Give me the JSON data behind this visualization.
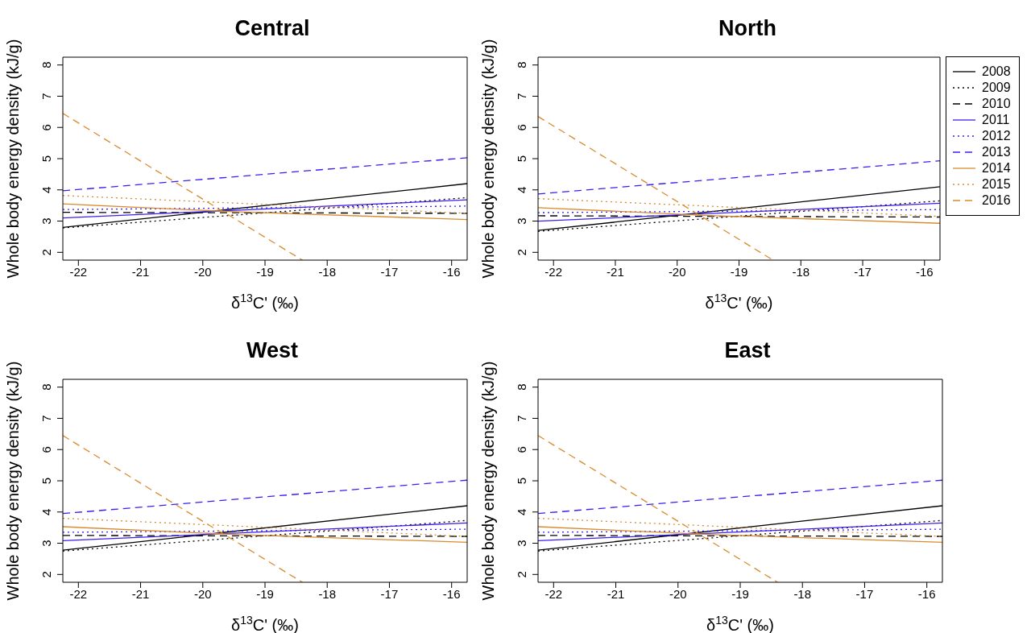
{
  "chart_data": [
    {
      "type": "line",
      "title": "Central",
      "xlabel": "δ$^{13}$C' (‰)",
      "ylabel": "Whole body energy density (kJ/g)",
      "xlim": [
        -22.25,
        -15.75
      ],
      "ylim": [
        1.75,
        8.25
      ],
      "xticks": [
        -22,
        -21,
        -20,
        -19,
        -18,
        -17,
        -16
      ],
      "yticks": [
        2,
        3,
        4,
        5,
        6,
        7,
        8
      ],
      "series": [
        {
          "color": "#000000",
          "line_style": "solid",
          "x": [
            -22.25,
            -15.75
          ],
          "values": [
            2.8,
            4.2
          ]
        },
        {
          "color": "#000000",
          "line_style": "dotted",
          "x": [
            -22.25,
            -15.75
          ],
          "values": [
            2.78,
            3.75
          ]
        },
        {
          "color": "#000000",
          "line_style": "dashed",
          "x": [
            -22.25,
            -15.75
          ],
          "values": [
            3.28,
            3.25
          ]
        },
        {
          "color": "#3b1ff0",
          "line_style": "solid",
          "x": [
            -22.25,
            -15.75
          ],
          "values": [
            3.1,
            3.68
          ]
        },
        {
          "color": "#3b1ff0",
          "line_style": "dotted",
          "x": [
            -22.25,
            -15.75
          ],
          "values": [
            3.37,
            3.48
          ]
        },
        {
          "color": "#3b1ff0",
          "line_style": "dashed",
          "x": [
            -22.25,
            -15.75
          ],
          "values": [
            3.97,
            5.03
          ]
        },
        {
          "color": "#d98b2f",
          "line_style": "solid",
          "x": [
            -22.25,
            -19.5,
            -15.75
          ],
          "values": [
            3.55,
            3.3,
            3.05
          ]
        },
        {
          "color": "#d98b2f",
          "line_style": "dotted",
          "x": [
            -22.25,
            -15.75
          ],
          "values": [
            3.82,
            3.25
          ]
        },
        {
          "color": "#d98b2f",
          "line_style": "dashed",
          "x": [
            -22.25,
            -18.4
          ],
          "values": [
            6.45,
            1.75
          ]
        }
      ]
    },
    {
      "type": "line",
      "title": "North",
      "xlabel": "δ$^{13}$C' (‰)",
      "ylabel": "Whole body energy density (kJ/g)",
      "xlim": [
        -22.25,
        -15.75
      ],
      "ylim": [
        1.75,
        8.25
      ],
      "xticks": [
        -22,
        -21,
        -20,
        -19,
        -18,
        -17,
        -16
      ],
      "yticks": [
        2,
        3,
        4,
        5,
        6,
        7,
        8
      ],
      "legend": "top right",
      "series": [
        {
          "name": "2008",
          "color": "#000000",
          "line_style": "solid",
          "x": [
            -22.25,
            -15.75
          ],
          "values": [
            2.7,
            4.1
          ]
        },
        {
          "name": "2009",
          "color": "#000000",
          "line_style": "dotted",
          "x": [
            -22.25,
            -15.75
          ],
          "values": [
            2.67,
            3.65
          ]
        },
        {
          "name": "2010",
          "color": "#000000",
          "line_style": "dashed",
          "x": [
            -22.25,
            -15.75
          ],
          "values": [
            3.17,
            3.13
          ]
        },
        {
          "name": "2011",
          "color": "#3b1ff0",
          "line_style": "solid",
          "x": [
            -22.25,
            -15.75
          ],
          "values": [
            3.0,
            3.57
          ]
        },
        {
          "name": "2012",
          "color": "#3b1ff0",
          "line_style": "dotted",
          "x": [
            -22.25,
            -15.75
          ],
          "values": [
            3.27,
            3.37
          ]
        },
        {
          "name": "2013",
          "color": "#3b1ff0",
          "line_style": "dashed",
          "x": [
            -22.25,
            -15.75
          ],
          "values": [
            3.87,
            4.93
          ]
        },
        {
          "name": "2014",
          "color": "#d98b2f",
          "line_style": "solid",
          "x": [
            -22.25,
            -19.5,
            -15.75
          ],
          "values": [
            3.43,
            3.18,
            2.93
          ]
        },
        {
          "name": "2015",
          "color": "#d98b2f",
          "line_style": "dotted",
          "x": [
            -22.25,
            -15.75
          ],
          "values": [
            3.72,
            3.15
          ]
        },
        {
          "name": "2016",
          "color": "#d98b2f",
          "line_style": "dashed",
          "x": [
            -22.25,
            -18.45
          ],
          "values": [
            6.35,
            1.75
          ]
        }
      ]
    },
    {
      "type": "line",
      "title": "West",
      "xlabel": "δ$^{13}$C' (‰)",
      "ylabel": "Whole body energy density (kJ/g)",
      "xlim": [
        -22.25,
        -15.75
      ],
      "ylim": [
        1.75,
        8.25
      ],
      "xticks": [
        -22,
        -21,
        -20,
        -19,
        -18,
        -17,
        -16
      ],
      "yticks": [
        2,
        3,
        4,
        5,
        6,
        7,
        8
      ],
      "series": [
        {
          "color": "#000000",
          "line_style": "solid",
          "x": [
            -22.25,
            -15.75
          ],
          "values": [
            2.78,
            4.2
          ]
        },
        {
          "color": "#000000",
          "line_style": "dotted",
          "x": [
            -22.25,
            -15.75
          ],
          "values": [
            2.75,
            3.73
          ]
        },
        {
          "color": "#000000",
          "line_style": "dashed",
          "x": [
            -22.25,
            -15.75
          ],
          "values": [
            3.25,
            3.22
          ]
        },
        {
          "color": "#3b1ff0",
          "line_style": "solid",
          "x": [
            -22.25,
            -15.75
          ],
          "values": [
            3.08,
            3.65
          ]
        },
        {
          "color": "#3b1ff0",
          "line_style": "dotted",
          "x": [
            -22.25,
            -15.75
          ],
          "values": [
            3.35,
            3.45
          ]
        },
        {
          "color": "#3b1ff0",
          "line_style": "dashed",
          "x": [
            -22.25,
            -15.75
          ],
          "values": [
            3.95,
            5.02
          ]
        },
        {
          "color": "#d98b2f",
          "line_style": "solid",
          "x": [
            -22.25,
            -19.5,
            -15.75
          ],
          "values": [
            3.53,
            3.28,
            3.03
          ]
        },
        {
          "color": "#d98b2f",
          "line_style": "dotted",
          "x": [
            -22.25,
            -15.75
          ],
          "values": [
            3.8,
            3.22
          ]
        },
        {
          "color": "#d98b2f",
          "line_style": "dashed",
          "x": [
            -22.25,
            -18.4
          ],
          "values": [
            6.45,
            1.75
          ]
        }
      ]
    },
    {
      "type": "line",
      "title": "East",
      "xlabel": "δ$^{13}$C' (‰)",
      "ylabel": "Whole body energy density (kJ/g)",
      "xlim": [
        -22.25,
        -15.75
      ],
      "ylim": [
        1.75,
        8.25
      ],
      "xticks": [
        -22,
        -21,
        -20,
        -19,
        -18,
        -17,
        -16
      ],
      "yticks": [
        2,
        3,
        4,
        5,
        6,
        7,
        8
      ],
      "series": [
        {
          "color": "#000000",
          "line_style": "solid",
          "x": [
            -22.25,
            -15.75
          ],
          "values": [
            2.78,
            4.2
          ]
        },
        {
          "color": "#000000",
          "line_style": "dotted",
          "x": [
            -22.25,
            -15.75
          ],
          "values": [
            2.75,
            3.73
          ]
        },
        {
          "color": "#000000",
          "line_style": "dashed",
          "x": [
            -22.25,
            -15.75
          ],
          "values": [
            3.25,
            3.22
          ]
        },
        {
          "color": "#3b1ff0",
          "line_style": "solid",
          "x": [
            -22.25,
            -15.75
          ],
          "values": [
            3.08,
            3.65
          ]
        },
        {
          "color": "#3b1ff0",
          "line_style": "dotted",
          "x": [
            -22.25,
            -15.75
          ],
          "values": [
            3.35,
            3.45
          ]
        },
        {
          "color": "#3b1ff0",
          "line_style": "dashed",
          "x": [
            -22.25,
            -15.75
          ],
          "values": [
            3.95,
            5.02
          ]
        },
        {
          "color": "#d98b2f",
          "line_style": "solid",
          "x": [
            -22.25,
            -19.5,
            -15.75
          ],
          "values": [
            3.53,
            3.28,
            3.03
          ]
        },
        {
          "color": "#d98b2f",
          "line_style": "dotted",
          "x": [
            -22.25,
            -15.75
          ],
          "values": [
            3.8,
            3.22
          ]
        },
        {
          "color": "#d98b2f",
          "line_style": "dashed",
          "x": [
            -22.25,
            -18.4
          ],
          "values": [
            6.45,
            1.75
          ]
        }
      ]
    }
  ]
}
